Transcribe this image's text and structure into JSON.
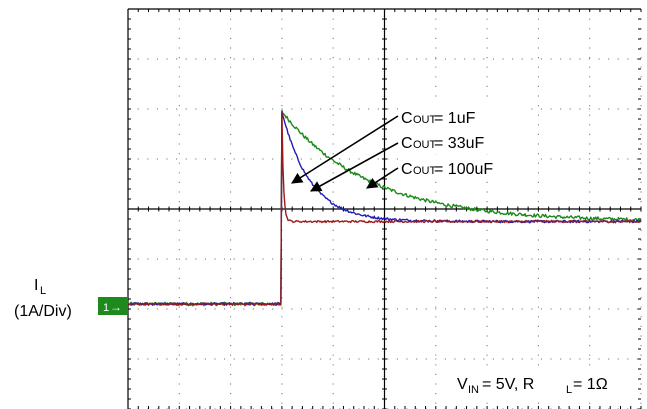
{
  "chart_data": {
    "type": "line",
    "title": "",
    "xlabel": "",
    "ylabel": "",
    "grid": true,
    "grid_divisions": {
      "x": 10,
      "y": 8
    },
    "ylabel_main": "I",
    "ylabel_sub": "L",
    "ylabel_scale": "(1A/Div)",
    "marker": "1",
    "marker_arrow": "→",
    "ylim_div": [
      0,
      8
    ],
    "xlim_div": [
      0,
      10
    ],
    "step_div": 3.0,
    "series": [
      {
        "name_main": "C",
        "name_sub": "OUT",
        "name_value": " = 1uF",
        "color": "#9b1b1b",
        "initial_div": 2.1,
        "peak_div": 5.95,
        "final_div": 3.75,
        "tau_div": 0.03,
        "noise": 0.02
      },
      {
        "name_main": "C",
        "name_sub": "OUT",
        "name_value": " = 33uF",
        "color": "#1e1eb4",
        "initial_div": 2.1,
        "peak_div": 5.95,
        "final_div": 3.75,
        "tau_div": 0.55,
        "noise": 0.025
      },
      {
        "name_main": "C",
        "name_sub": "OUT",
        "name_value": " = 100uF",
        "color": "#1a8a1a",
        "initial_div": 2.1,
        "peak_div": 5.95,
        "final_div": 3.75,
        "tau_div": 1.7,
        "noise": 0.035
      }
    ],
    "annotation": {
      "v_main": "V",
      "v_sub": "IN",
      "v_value": " = 5V, R",
      "r_sub": "L",
      "r_value": " = 1Ω"
    }
  }
}
